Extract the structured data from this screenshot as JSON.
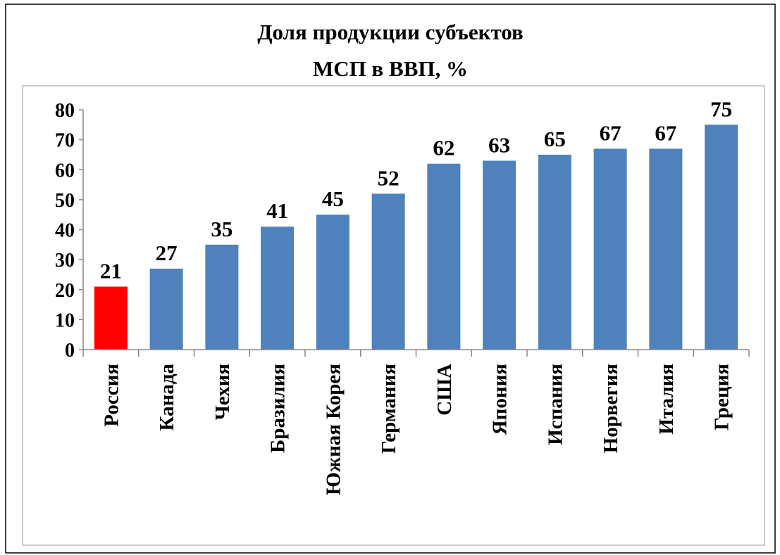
{
  "chart_data": {
    "type": "bar",
    "title": [
      "Доля продукции субъектов",
      "МСП в ВВП, %"
    ],
    "categories": [
      "Россия",
      "Канада",
      "Чехия",
      "Бразилия",
      "Южная Корея",
      "Германия",
      "США",
      "Япония",
      "Испания",
      "Норвегия",
      "Италия",
      "Греция"
    ],
    "values": [
      21,
      27,
      35,
      41,
      45,
      52,
      62,
      63,
      65,
      67,
      67,
      75
    ],
    "colors": [
      "#ff0000",
      "#4f81bd",
      "#4f81bd",
      "#4f81bd",
      "#4f81bd",
      "#4f81bd",
      "#4f81bd",
      "#4f81bd",
      "#4f81bd",
      "#4f81bd",
      "#4f81bd",
      "#4f81bd"
    ],
    "ylim": [
      0,
      80
    ],
    "yticks": [
      0,
      10,
      20,
      30,
      40,
      50,
      60,
      70,
      80
    ],
    "grid": false
  }
}
